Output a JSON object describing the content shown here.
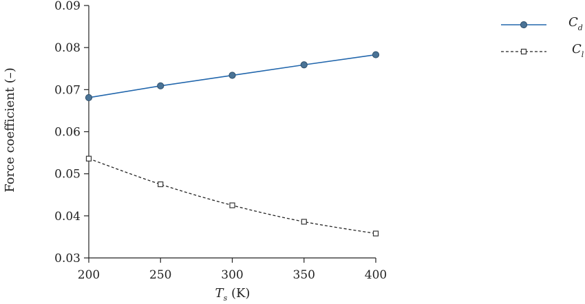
{
  "chart_data": {
    "type": "line",
    "x": [
      200,
      250,
      300,
      350,
      400
    ],
    "series": [
      {
        "name": "C",
        "name_sub": "d",
        "values": [
          0.0681,
          0.0709,
          0.0734,
          0.0759,
          0.0783
        ],
        "color": "#2166ac",
        "marker": "circle",
        "line": "solid"
      },
      {
        "name": "C",
        "name_sub": "l",
        "values": [
          0.0536,
          0.0475,
          0.0425,
          0.0386,
          0.0358
        ],
        "color": "#222222",
        "marker": "square",
        "line": "dashed"
      }
    ],
    "xlabel": "T",
    "xlabel_sub": "s",
    "xlabel_unit": " (K)",
    "ylabel": "Force coefficient (–)",
    "xlim": [
      200,
      400
    ],
    "ylim": [
      0.03,
      0.09
    ],
    "xticks": [
      200,
      250,
      300,
      350,
      400
    ],
    "yticks": [
      "0.03",
      "0.04",
      "0.05",
      "0.06",
      "0.07",
      "0.08",
      "0.09"
    ],
    "grid": false,
    "legend": "right"
  }
}
